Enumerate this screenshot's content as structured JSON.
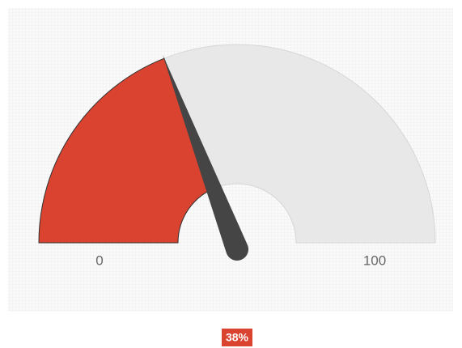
{
  "chart_data": {
    "type": "gauge",
    "values": [
      38
    ],
    "value_labels": [
      "38%"
    ],
    "ylim": [
      0,
      100
    ],
    "yticks": [
      0,
      100
    ],
    "color": "#d9432f",
    "track_color": "#e8e8e8",
    "needle_color": "#454545"
  }
}
